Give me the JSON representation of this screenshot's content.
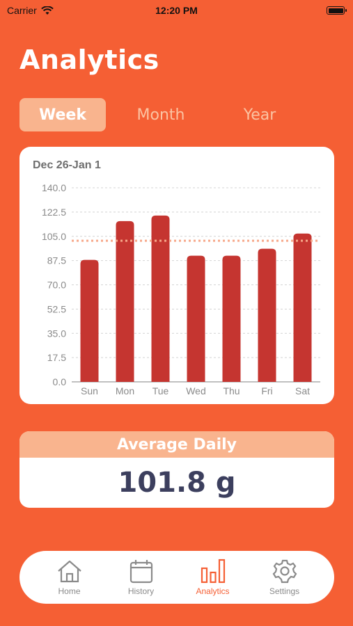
{
  "status": {
    "carrier": "Carrier",
    "time": "12:20 PM"
  },
  "page_title": "Analytics",
  "segments": {
    "week": "Week",
    "month": "Month",
    "year": "Year",
    "selected": "Week"
  },
  "chart_header": "Dec 26-Jan 1",
  "chart_data": {
    "type": "bar",
    "categories": [
      "Sun",
      "Mon",
      "Tue",
      "Wed",
      "Thu",
      "Fri",
      "Sat"
    ],
    "values": [
      88,
      116,
      120,
      91,
      91,
      96,
      107
    ],
    "ylim": [
      0,
      140
    ],
    "yticks": [
      "0.0",
      "17.5",
      "35.0",
      "52.5",
      "70.0",
      "87.5",
      "105.0",
      "122.5",
      "140.0"
    ],
    "reference_line": 101.8,
    "grid": true,
    "bar_color": "#c53530",
    "reference_color": "#f6a88a"
  },
  "average": {
    "label": "Average Daily",
    "value": "101.8 g"
  },
  "tabs": [
    {
      "label": "Home",
      "icon": "home-icon"
    },
    {
      "label": "History",
      "icon": "calendar-icon"
    },
    {
      "label": "Analytics",
      "icon": "bar-chart-icon"
    },
    {
      "label": "Settings",
      "icon": "gear-icon"
    }
  ],
  "colors": {
    "accent": "#f55f34",
    "segment_active": "#f9b48e",
    "value_text": "#3c3f5e"
  }
}
